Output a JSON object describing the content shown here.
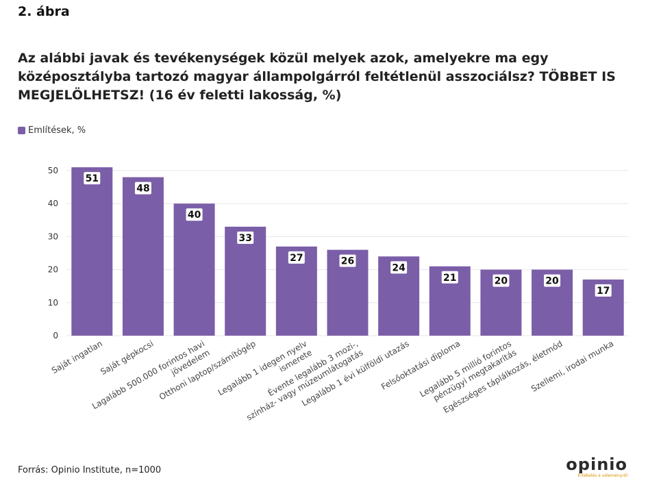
{
  "figure_label": "2. ábra",
  "source": "Forrás: Opinio Institute, n=1000",
  "logo": {
    "text": "opinio",
    "tagline": "Értékelés a véleményről"
  },
  "colors": {
    "bar": "#7b5ea8"
  },
  "chart_data": {
    "type": "bar",
    "title": "Az alábbi javak és tevékenységek közül melyek azok, amelyekre ma egy középosztályba tartozó magyar állampolgárról feltétlenül asszociálsz? TÖBBET IS MEGJELÖLHETSZ! (16 év feletti lakosság, %)",
    "legend": [
      "Említések, %"
    ],
    "legend_position": "top-left",
    "categories": [
      [
        "Saját ingatlan"
      ],
      [
        "Saját gépkocsi"
      ],
      [
        "Lagalább 500.000 forintos havi",
        "jövedelem"
      ],
      [
        "Otthoni laptop/számítógép"
      ],
      [
        "Legalább 1 idegen nyelv",
        "ismerete"
      ],
      [
        "Évente legalább 3 mozi-,",
        "színház- vagy múzeumlátogatás"
      ],
      [
        "Legalább 1 évi külföldi utazás"
      ],
      [
        "Felsőoktatási diploma"
      ],
      [
        "Legalább 5 millió forintos",
        "pénzügyi megtakarítás"
      ],
      [
        "Egészséges táplálkozás, életmód"
      ],
      [
        "Szellemi, irodai munka"
      ]
    ],
    "series": [
      {
        "name": "Említések, %",
        "values": [
          51,
          48,
          40,
          33,
          27,
          26,
          24,
          21,
          20,
          20,
          17
        ]
      }
    ],
    "y_ticks": [
      0,
      10,
      20,
      30,
      40,
      50
    ],
    "ylim": [
      0,
      55
    ],
    "grid": true
  }
}
